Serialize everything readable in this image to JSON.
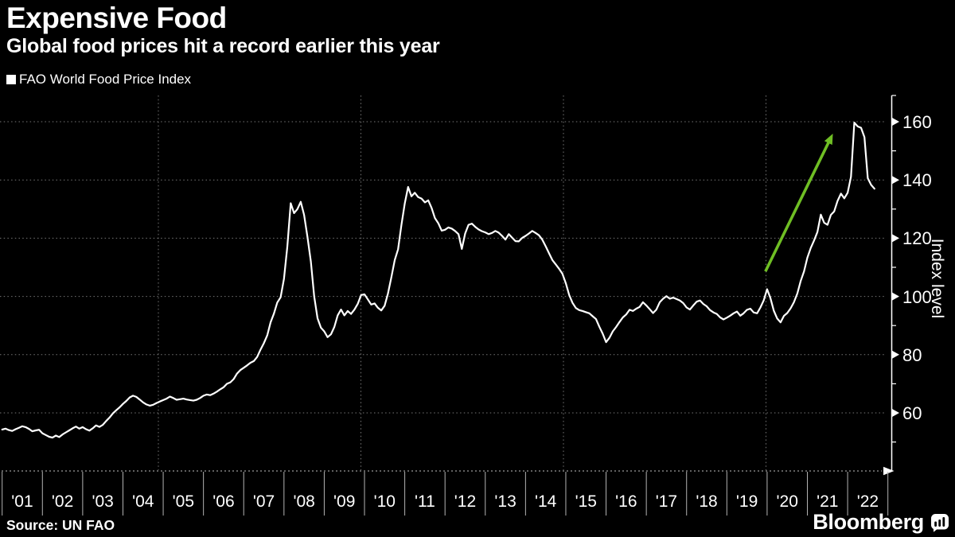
{
  "header": {
    "title": "Expensive Food",
    "subtitle": "Global food prices hit a record earlier this year"
  },
  "legend": {
    "label": "FAO World Food Price Index"
  },
  "source": {
    "text": "Source: UN FAO"
  },
  "branding": {
    "logo_text": "Bloomberg"
  },
  "colors": {
    "background": "#000000",
    "text": "#ffffff",
    "line": "#ffffff",
    "grid": "#767676",
    "axis_dots": "#9a9a9a",
    "axis": "#ffffff",
    "year_tick": "#b3b3b3",
    "arrow_green": "#6fbe24"
  },
  "chart_data": {
    "type": "line",
    "title": "Expensive Food",
    "series_name": "FAO World Food Price Index",
    "frequency": "monthly",
    "start": "2001-01",
    "end": "2022-09",
    "ylabel": "Index level",
    "ylim": [
      40,
      169
    ],
    "y_ticks": [
      60,
      80,
      100,
      120,
      140,
      160
    ],
    "y_minor_ticks": [
      50,
      70,
      90,
      110,
      130,
      150
    ],
    "x_tick_labels": [
      "'01",
      "'02",
      "'03",
      "'04",
      "'05",
      "'06",
      "'07",
      "'08",
      "'09",
      "'10",
      "'11",
      "'12",
      "'13",
      "'14",
      "'15",
      "'16",
      "'17",
      "'18",
      "'19",
      "'20",
      "'21",
      "'22"
    ],
    "grid": "dotted",
    "legend_position": "top-left",
    "annotation": {
      "shape": "arrow",
      "color": "#6fbe24",
      "from": {
        "month_index": 227.5,
        "value": 108.6
      },
      "to": {
        "month_index": 247.6,
        "value": 155.9
      }
    },
    "values": [
      54.3,
      54.6,
      54.1,
      53.8,
      54.4,
      54.9,
      55.4,
      55.1,
      54.5,
      53.7,
      54.0,
      54.2,
      53.0,
      52.4,
      51.8,
      51.5,
      52.2,
      51.7,
      52.6,
      53.3,
      54.0,
      54.7,
      55.3,
      54.6,
      55.1,
      54.4,
      53.9,
      54.7,
      55.7,
      55.2,
      55.9,
      57.2,
      58.4,
      59.8,
      60.9,
      61.9,
      63.1,
      64.1,
      65.3,
      65.9,
      65.5,
      64.6,
      63.6,
      62.9,
      62.5,
      62.8,
      63.4,
      63.9,
      64.4,
      64.9,
      65.6,
      65.1,
      64.5,
      64.7,
      64.9,
      64.6,
      64.4,
      64.2,
      64.5,
      65.1,
      65.9,
      66.3,
      66.1,
      66.6,
      67.3,
      68.1,
      68.8,
      70.0,
      70.5,
      71.6,
      73.5,
      74.7,
      75.5,
      76.3,
      77.2,
      77.8,
      79.2,
      81.7,
      83.9,
      86.6,
      91.1,
      94.1,
      97.9,
      99.7,
      106.0,
      117.0,
      132.0,
      128.6,
      130.0,
      132.5,
      128.0,
      120.5,
      112.0,
      100.0,
      92.5,
      89.3,
      88.0,
      86.0,
      87.0,
      89.5,
      93.5,
      95.5,
      93.5,
      95.0,
      94.0,
      95.5,
      97.5,
      100.5,
      100.7,
      99.0,
      97.2,
      97.6,
      96.1,
      95.2,
      96.8,
      101.0,
      106.5,
      112.5,
      116.2,
      124.5,
      131.9,
      137.6,
      134.4,
      135.6,
      134.1,
      133.6,
      132.3,
      133.0,
      130.4,
      126.9,
      125.1,
      122.6,
      122.9,
      123.7,
      123.3,
      122.5,
      121.4,
      116.3,
      121.6,
      124.6,
      125.0,
      123.9,
      123.0,
      122.4,
      122.0,
      121.4,
      121.8,
      122.5,
      121.9,
      120.8,
      119.5,
      121.4,
      120.2,
      119.0,
      118.9,
      120.1,
      120.8,
      121.6,
      122.5,
      121.8,
      121.0,
      119.5,
      117.2,
      114.8,
      112.5,
      111.0,
      109.5,
      107.8,
      104.5,
      100.5,
      97.8,
      96.0,
      95.3,
      95.0,
      94.6,
      94.2,
      93.2,
      92.2,
      89.6,
      87.2,
      84.3,
      85.8,
      88.0,
      89.5,
      91.2,
      92.8,
      93.8,
      95.4,
      95.0,
      95.8,
      96.4,
      98.0,
      96.9,
      95.6,
      94.3,
      95.5,
      98.0,
      99.2,
      100.1,
      99.2,
      99.6,
      99.1,
      98.6,
      97.7,
      96.2,
      95.5,
      96.9,
      98.2,
      98.6,
      97.4,
      96.6,
      95.3,
      94.5,
      94.0,
      92.8,
      92.1,
      92.7,
      93.4,
      94.2,
      94.8,
      93.4,
      94.2,
      95.4,
      95.8,
      94.5,
      94.2,
      96.2,
      98.7,
      102.5,
      99.4,
      95.1,
      92.4,
      91.1,
      93.3,
      94.3,
      95.9,
      98.0,
      101.0,
      105.3,
      108.6,
      113.3,
      116.6,
      119.2,
      122.1,
      128.1,
      125.3,
      124.6,
      128.0,
      129.2,
      132.8,
      135.3,
      133.7,
      135.6,
      141.1,
      159.7,
      158.4,
      157.9,
      154.7,
      140.6,
      138.3,
      137.0
    ]
  }
}
